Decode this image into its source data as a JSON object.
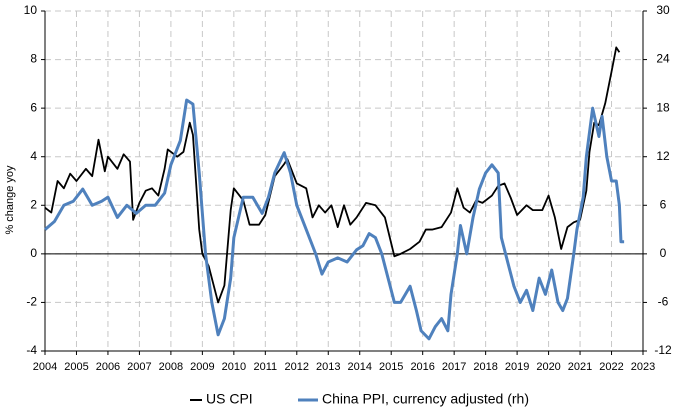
{
  "chart_data": {
    "type": "line",
    "y_label": "% change yoy",
    "xlim": [
      2004,
      2023
    ],
    "xticks": [
      2004,
      2005,
      2006,
      2007,
      2008,
      2009,
      2010,
      2011,
      2012,
      2013,
      2014,
      2015,
      2016,
      2017,
      2018,
      2019,
      2020,
      2021,
      2022,
      2023
    ],
    "ylim": [
      -4,
      10
    ],
    "yticks": [
      -4,
      -2,
      0,
      2,
      4,
      6,
      8,
      10
    ],
    "y2lim": [
      -12,
      30
    ],
    "y2ticks": [
      -12,
      -6,
      0,
      6,
      12,
      18,
      24,
      30
    ],
    "grid": true,
    "legend": "bottom",
    "series": [
      {
        "name": "US CPI",
        "color": "#000000",
        "x": [
          2004.0,
          2004.2,
          2004.4,
          2004.6,
          2004.8,
          2005.0,
          2005.3,
          2005.5,
          2005.7,
          2005.9,
          2006.0,
          2006.3,
          2006.5,
          2006.7,
          2006.8,
          2007.0,
          2007.2,
          2007.4,
          2007.6,
          2007.8,
          2007.9,
          2008.2,
          2008.4,
          2008.6,
          2008.7,
          2008.9,
          2009.0,
          2009.2,
          2009.5,
          2009.7,
          2009.9,
          2010.0,
          2010.3,
          2010.5,
          2010.8,
          2011.0,
          2011.3,
          2011.6,
          2011.7,
          2012.0,
          2012.3,
          2012.5,
          2012.7,
          2012.9,
          2013.1,
          2013.3,
          2013.5,
          2013.7,
          2013.9,
          2014.2,
          2014.5,
          2014.8,
          2014.95,
          2015.1,
          2015.3,
          2015.6,
          2015.9,
          2016.1,
          2016.3,
          2016.6,
          2016.9,
          2017.1,
          2017.3,
          2017.5,
          2017.7,
          2017.9,
          2018.2,
          2018.4,
          2018.6,
          2018.8,
          2019.0,
          2019.3,
          2019.5,
          2019.8,
          2020.0,
          2020.2,
          2020.4,
          2020.6,
          2020.8,
          2021.0,
          2021.2,
          2021.3,
          2021.45,
          2021.6,
          2021.8,
          2022.0,
          2022.15,
          2022.25
        ],
        "values": [
          1.9,
          1.7,
          3.0,
          2.7,
          3.3,
          3.0,
          3.5,
          3.2,
          4.7,
          3.4,
          4.0,
          3.5,
          4.1,
          3.8,
          1.4,
          2.1,
          2.6,
          2.7,
          2.4,
          3.5,
          4.3,
          4.0,
          4.2,
          5.4,
          4.9,
          1.0,
          0.0,
          -0.5,
          -2.0,
          -1.3,
          1.8,
          2.7,
          2.2,
          1.2,
          1.2,
          1.6,
          3.2,
          3.7,
          3.9,
          2.9,
          2.7,
          1.5,
          2.0,
          1.7,
          2.0,
          1.1,
          2.0,
          1.2,
          1.5,
          2.1,
          2.0,
          1.5,
          0.7,
          -0.1,
          0.0,
          0.2,
          0.5,
          1.0,
          1.0,
          1.1,
          1.7,
          2.7,
          1.9,
          1.7,
          2.2,
          2.1,
          2.4,
          2.8,
          2.9,
          2.3,
          1.6,
          2.0,
          1.8,
          1.8,
          2.4,
          1.5,
          0.2,
          1.1,
          1.3,
          1.4,
          2.6,
          4.2,
          5.4,
          5.3,
          6.2,
          7.5,
          8.5,
          8.3
        ]
      },
      {
        "name": "China PPI, currency adjusted (rh)",
        "color": "#4f81bd",
        "axis": "y2",
        "x": [
          2004.0,
          2004.3,
          2004.6,
          2004.9,
          2005.2,
          2005.5,
          2005.8,
          2006.0,
          2006.3,
          2006.6,
          2006.9,
          2007.2,
          2007.5,
          2007.8,
          2008.0,
          2008.3,
          2008.5,
          2008.7,
          2008.9,
          2009.1,
          2009.3,
          2009.5,
          2009.7,
          2009.9,
          2010.0,
          2010.3,
          2010.6,
          2010.9,
          2011.1,
          2011.3,
          2011.6,
          2011.8,
          2012.0,
          2012.3,
          2012.6,
          2012.8,
          2013.0,
          2013.3,
          2013.6,
          2013.9,
          2014.1,
          2014.3,
          2014.5,
          2014.7,
          2014.9,
          2015.1,
          2015.3,
          2015.6,
          2015.8,
          2015.95,
          2016.2,
          2016.4,
          2016.6,
          2016.8,
          2016.9,
          2017.1,
          2017.2,
          2017.4,
          2017.6,
          2017.8,
          2018.0,
          2018.2,
          2018.4,
          2018.5,
          2018.7,
          2018.9,
          2019.1,
          2019.3,
          2019.5,
          2019.7,
          2019.9,
          2020.1,
          2020.3,
          2020.45,
          2020.6,
          2020.8,
          2020.9,
          2021.1,
          2021.2,
          2021.4,
          2021.6,
          2021.7,
          2021.85,
          2022.0,
          2022.15,
          2022.25,
          2022.3,
          2022.4
        ],
        "values": [
          3,
          4,
          6,
          6.5,
          8,
          6,
          6.5,
          7,
          4.5,
          6,
          5,
          6,
          6,
          7.5,
          11,
          14,
          19,
          18.5,
          10,
          0,
          -6,
          -10,
          -8,
          -3,
          2,
          7,
          7,
          5,
          7,
          10,
          12.5,
          10,
          6,
          3,
          0,
          -2.5,
          -1,
          -0.5,
          -1,
          0.5,
          1,
          2.5,
          2,
          0,
          -3,
          -6,
          -6,
          -4,
          -7,
          -9.5,
          -10.5,
          -9,
          -8,
          -9.5,
          -5,
          0,
          3.5,
          0,
          4.5,
          8,
          10,
          11,
          10,
          2,
          -1,
          -4,
          -6,
          -4.5,
          -7,
          -3,
          -5,
          -2,
          -6,
          -7,
          -5.5,
          0,
          3,
          7,
          12,
          18,
          14.5,
          17,
          12,
          9,
          9,
          6,
          1.5,
          1.5
        ]
      }
    ]
  }
}
